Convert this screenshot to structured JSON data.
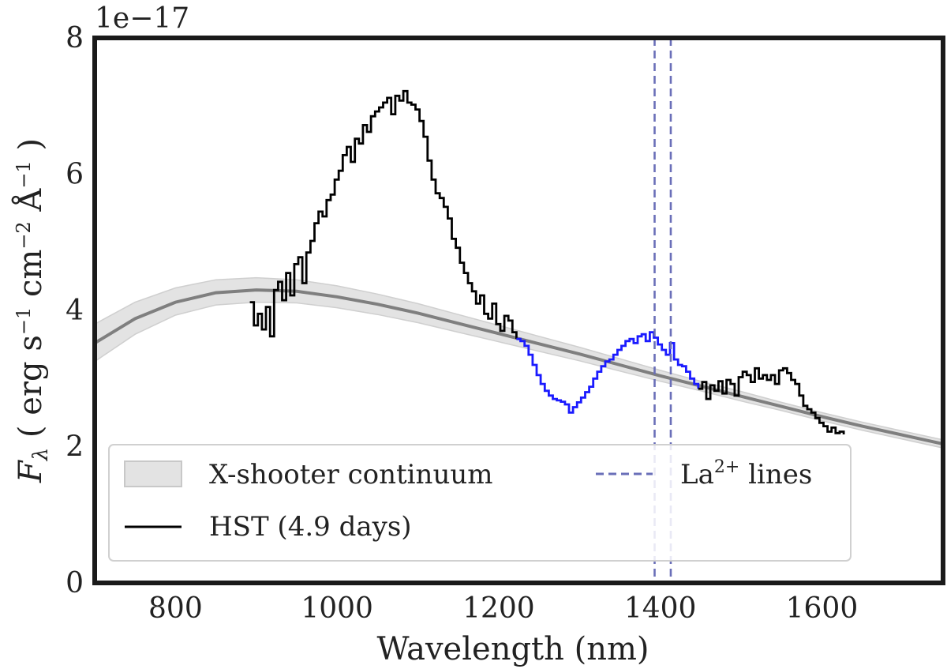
{
  "chart_data": {
    "type": "line",
    "title": "",
    "xlabel": "Wavelength (nm)",
    "ylabel": "F_λ ( erg s⁻¹ cm⁻² Å⁻¹ )",
    "y_offset_text": "1e−17",
    "xlim": [
      700,
      1750
    ],
    "ylim": [
      0,
      8
    ],
    "x_ticks": [
      800,
      1000,
      1200,
      1400,
      1600
    ],
    "y_ticks": [
      0,
      2,
      4,
      6,
      8
    ],
    "grid": false,
    "legend_placement": "lower-left",
    "legend": [
      {
        "label": "X-shooter continuum",
        "style": "band",
        "color": "#c8c8c8"
      },
      {
        "label": "HST (4.9 days)",
        "style": "line",
        "color": "#000000"
      },
      {
        "label": "La²⁺ lines",
        "style": "dashed",
        "color": "#6a6fb8"
      }
    ],
    "series": [
      {
        "name": "X-shooter continuum",
        "type": "band-with-center",
        "color": "#7f7f7f",
        "x": [
          700,
          750,
          800,
          850,
          900,
          950,
          1000,
          1050,
          1100,
          1150,
          1200,
          1250,
          1300,
          1350,
          1400,
          1450,
          1500,
          1550,
          1600,
          1650,
          1700,
          1750
        ],
        "y": [
          3.52,
          3.88,
          4.12,
          4.26,
          4.3,
          4.28,
          4.2,
          4.09,
          3.96,
          3.81,
          3.66,
          3.51,
          3.36,
          3.2,
          3.04,
          2.89,
          2.74,
          2.59,
          2.44,
          2.3,
          2.17,
          2.04
        ],
        "lower": [
          3.25,
          3.65,
          3.93,
          4.08,
          4.12,
          4.11,
          4.04,
          3.94,
          3.82,
          3.68,
          3.54,
          3.4,
          3.26,
          3.11,
          2.96,
          2.82,
          2.67,
          2.53,
          2.38,
          2.24,
          2.11,
          1.98
        ],
        "upper": [
          3.8,
          4.12,
          4.33,
          4.45,
          4.48,
          4.45,
          4.36,
          4.24,
          4.1,
          3.94,
          3.78,
          3.62,
          3.46,
          3.29,
          3.12,
          2.96,
          2.81,
          2.65,
          2.5,
          2.36,
          2.23,
          2.1
        ]
      },
      {
        "name": "HST (4.9 days)",
        "type": "step",
        "color": "#000000",
        "x": [
          892,
          897,
          902,
          907,
          912,
          917,
          922,
          927,
          932,
          937,
          942,
          947,
          952,
          957,
          962,
          967,
          972,
          977,
          982,
          987,
          992,
          997,
          1002,
          1007,
          1012,
          1017,
          1022,
          1027,
          1032,
          1037,
          1042,
          1047,
          1052,
          1057,
          1062,
          1067,
          1072,
          1077,
          1082,
          1087,
          1092,
          1097,
          1102,
          1107,
          1112,
          1117,
          1122,
          1127,
          1132,
          1137,
          1142,
          1147,
          1152,
          1157,
          1162,
          1167,
          1172,
          1177,
          1182,
          1187,
          1192,
          1197,
          1202,
          1207,
          1212,
          1217,
          1222
        ],
        "y": [
          4.12,
          3.78,
          3.95,
          3.72,
          4.05,
          3.62,
          4.3,
          4.42,
          4.15,
          4.55,
          4.22,
          4.68,
          4.78,
          4.4,
          4.85,
          5.02,
          5.28,
          5.45,
          5.38,
          5.62,
          5.7,
          5.92,
          6.05,
          6.28,
          6.4,
          6.18,
          6.52,
          6.45,
          6.72,
          6.62,
          6.85,
          6.92,
          6.98,
          7.05,
          7.12,
          6.88,
          7.15,
          7.08,
          7.22,
          7.05,
          7.02,
          6.95,
          6.78,
          6.55,
          6.2,
          5.92,
          5.72,
          5.65,
          5.52,
          5.35,
          5.05,
          4.92,
          4.7,
          4.55,
          4.4,
          4.28,
          4.1,
          4.22,
          3.95,
          3.88,
          4.1,
          3.8,
          3.7,
          3.92,
          3.85,
          3.68,
          3.58
        ]
      },
      {
        "name": "HST (4.9 days) absorption/emission region",
        "type": "step",
        "color": "#1a1aff",
        "x": [
          1222,
          1227,
          1232,
          1237,
          1242,
          1247,
          1252,
          1257,
          1262,
          1267,
          1272,
          1277,
          1282,
          1287,
          1292,
          1297,
          1302,
          1307,
          1312,
          1317,
          1322,
          1327,
          1332,
          1337,
          1342,
          1347,
          1352,
          1357,
          1362,
          1367,
          1372,
          1377,
          1382,
          1387,
          1392,
          1397,
          1402,
          1407,
          1412,
          1417,
          1422,
          1427,
          1432,
          1437,
          1442,
          1447
        ],
        "y": [
          3.58,
          3.55,
          3.48,
          3.35,
          3.2,
          3.05,
          2.92,
          2.82,
          2.75,
          2.7,
          2.68,
          2.66,
          2.62,
          2.5,
          2.58,
          2.65,
          2.72,
          2.8,
          2.88,
          3.0,
          3.1,
          3.18,
          3.25,
          3.28,
          3.35,
          3.42,
          3.48,
          3.55,
          3.58,
          3.52,
          3.62,
          3.65,
          3.55,
          3.68,
          3.6,
          3.5,
          3.42,
          3.35,
          3.52,
          3.28,
          3.2,
          3.18,
          3.1,
          3.0,
          2.92,
          2.85
        ]
      },
      {
        "name": "HST (4.9 days) red end",
        "type": "step",
        "color": "#000000",
        "x": [
          1447,
          1452,
          1457,
          1462,
          1467,
          1472,
          1477,
          1482,
          1487,
          1492,
          1497,
          1502,
          1507,
          1512,
          1517,
          1522,
          1527,
          1532,
          1537,
          1542,
          1547,
          1552,
          1557,
          1562,
          1567,
          1572,
          1577,
          1582,
          1587,
          1592,
          1597,
          1602,
          1607,
          1612,
          1617,
          1622,
          1627
        ],
        "y": [
          2.85,
          2.95,
          2.7,
          2.9,
          2.82,
          2.96,
          2.78,
          2.98,
          2.92,
          2.75,
          3.02,
          3.1,
          3.05,
          2.95,
          3.15,
          3.0,
          3.05,
          2.98,
          3.05,
          2.92,
          3.12,
          3.15,
          3.08,
          2.98,
          2.92,
          2.75,
          2.6,
          2.55,
          2.5,
          2.42,
          2.35,
          2.3,
          2.22,
          2.28,
          2.2,
          2.22,
          2.18
        ]
      }
    ],
    "vlines": {
      "name": "La²⁺ lines",
      "color": "#6a6fb8",
      "style": "dashed",
      "x": [
        1393,
        1413
      ]
    }
  }
}
